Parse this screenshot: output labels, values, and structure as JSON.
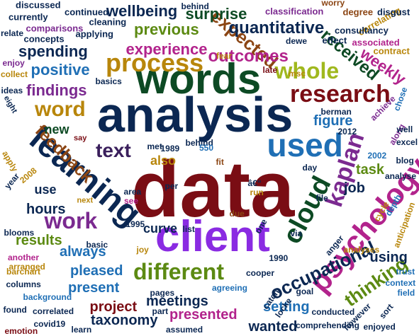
{
  "words": [
    {
      "text": "data",
      "color": "#7a0d14"
    },
    {
      "text": "analysis",
      "color": "#0b2752"
    },
    {
      "text": "words",
      "color": "#0d4a24"
    },
    {
      "text": "client",
      "color": "#8a2be2"
    },
    {
      "text": "learning",
      "color": "#0b2752"
    },
    {
      "text": "used",
      "color": "#1f6fb5"
    },
    {
      "text": "psychology",
      "color": "#b2238c"
    },
    {
      "text": "cloud",
      "color": "#0d4a24"
    },
    {
      "text": "kaplan",
      "color": "#7b2a90"
    },
    {
      "text": "research",
      "color": "#7a0d14"
    },
    {
      "text": "process",
      "color": "#b8860b"
    },
    {
      "text": "whole",
      "color": "#a0b81e"
    },
    {
      "text": "different",
      "color": "#5c8a12"
    },
    {
      "text": "work",
      "color": "#7b2a90"
    },
    {
      "text": "word",
      "color": "#b8860b"
    },
    {
      "text": "text",
      "color": "#3a1f5c"
    },
    {
      "text": "feedback",
      "color": "#8b4513"
    },
    {
      "text": "occupational",
      "color": "#0b2752"
    },
    {
      "text": "thinking",
      "color": "#5c8a12"
    },
    {
      "text": "expected",
      "color": "#8b4513"
    },
    {
      "text": "outcomes",
      "color": "#b2238c"
    },
    {
      "text": "quantitative",
      "color": "#0b2752"
    },
    {
      "text": "received",
      "color": "#0d4a24"
    },
    {
      "text": "findings",
      "color": "#7b2a90"
    },
    {
      "text": "spending",
      "color": "#0b2752"
    },
    {
      "text": "experience",
      "color": "#b2238c"
    },
    {
      "text": "previous",
      "color": "#5c8a12"
    },
    {
      "text": "wellbeing",
      "color": "#0b2752"
    },
    {
      "text": "surprise",
      "color": "#0d4a24"
    },
    {
      "text": "positive",
      "color": "#1f6fb5"
    },
    {
      "text": "weekly",
      "color": "#b2238c"
    },
    {
      "text": "figure",
      "color": "#1f6fb5"
    },
    {
      "text": "job",
      "color": "#0b2752"
    },
    {
      "text": "task",
      "color": "#5c8a12"
    },
    {
      "text": "hours",
      "color": "#0b2752"
    },
    {
      "text": "results",
      "color": "#5c8a12"
    },
    {
      "text": "always",
      "color": "#1f6fb5"
    },
    {
      "text": "pleased",
      "color": "#1f6fb5"
    },
    {
      "text": "present",
      "color": "#1f6fb5"
    },
    {
      "text": "curve",
      "color": "#0b2752"
    },
    {
      "text": "meetings",
      "color": "#0b2752"
    },
    {
      "text": "taxonomy",
      "color": "#0b2752"
    },
    {
      "text": "project",
      "color": "#7a0d14"
    },
    {
      "text": "presented",
      "color": "#b2238c"
    },
    {
      "text": "setting",
      "color": "#1f6fb5"
    },
    {
      "text": "wanted",
      "color": "#0b2752"
    },
    {
      "text": "using",
      "color": "#0b2752"
    },
    {
      "text": "also",
      "color": "#b8860b"
    },
    {
      "text": "new",
      "color": "#0d4a24"
    },
    {
      "text": "use",
      "color": "#0b2752"
    },
    {
      "text": "discussed",
      "color": "#0b2752"
    },
    {
      "text": "currently",
      "color": "#0b2752"
    },
    {
      "text": "relate",
      "color": "#0b2752"
    },
    {
      "text": "comparisons",
      "color": "#7b2a90"
    },
    {
      "text": "concepts",
      "color": "#0b2752"
    },
    {
      "text": "continued",
      "color": "#0b2752"
    },
    {
      "text": "cleaning",
      "color": "#0b2752"
    },
    {
      "text": "applying",
      "color": "#0b2752"
    },
    {
      "text": "behind",
      "color": "#0b2752"
    },
    {
      "text": "classification",
      "color": "#7b2a90"
    },
    {
      "text": "worry",
      "color": "#8b4513"
    },
    {
      "text": "degree",
      "color": "#8b4513"
    },
    {
      "text": "correlating",
      "color": "#b8860b"
    },
    {
      "text": "disgust",
      "color": "#0b2752"
    },
    {
      "text": "consultancy",
      "color": "#0b2752"
    },
    {
      "text": "associated",
      "color": "#b2238c"
    },
    {
      "text": "effect",
      "color": "#0b2752"
    },
    {
      "text": "contract",
      "color": "#b8860b"
    },
    {
      "text": "dewe",
      "color": "#0b2752"
    },
    {
      "text": "fear",
      "color": "#b8860b"
    },
    {
      "text": "late",
      "color": "#7a0d14"
    },
    {
      "text": "msc",
      "color": "#b8860b"
    },
    {
      "text": "enjoy",
      "color": "#7b2a90"
    },
    {
      "text": "collect",
      "color": "#b8860b"
    },
    {
      "text": "ideas",
      "color": "#0b2752"
    },
    {
      "text": "basics",
      "color": "#0b2752"
    },
    {
      "text": "eight",
      "color": "#0b2752"
    },
    {
      "text": "say",
      "color": "#7a0d14"
    },
    {
      "text": "met",
      "color": "#0b2752"
    },
    {
      "text": "behind",
      "color": "#0b2752"
    },
    {
      "text": "1989",
      "color": "#0b2752"
    },
    {
      "text": "550",
      "color": "#1f6fb5"
    },
    {
      "text": "fit",
      "color": "#8b4513"
    },
    {
      "text": "berman",
      "color": "#0b2752"
    },
    {
      "text": "2012",
      "color": "#0b2752"
    },
    {
      "text": "along",
      "color": "#7b2a90"
    },
    {
      "text": "achieve",
      "color": "#7b2a90"
    },
    {
      "text": "chose",
      "color": "#1f6fb5"
    },
    {
      "text": "well",
      "color": "#0b2752"
    },
    {
      "text": "excel",
      "color": "#0b2752"
    },
    {
      "text": "blog",
      "color": "#0b2752"
    },
    {
      "text": "2002",
      "color": "#1f6fb5"
    },
    {
      "text": "day",
      "color": "#0b2752"
    },
    {
      "text": "â€“",
      "color": "#0b2752"
    },
    {
      "text": "run",
      "color": "#b8860b"
    },
    {
      "text": "file",
      "color": "#0b2752"
    },
    {
      "text": "analyse",
      "color": "#0b2752"
    },
    {
      "text": "apply",
      "color": "#b8860b"
    },
    {
      "text": "year",
      "color": "#0b2752"
    },
    {
      "text": "2008",
      "color": "#b8860b"
    },
    {
      "text": "next",
      "color": "#b8860b"
    },
    {
      "text": "see",
      "color": "#b2238c"
    },
    {
      "text": "area",
      "color": "#0b2752"
    },
    {
      "text": "per",
      "color": "#0b2752"
    },
    {
      "text": "cycle",
      "color": "#b8860b"
    },
    {
      "text": "anticipation",
      "color": "#b8860b"
    },
    {
      "text": "depth",
      "color": "#1f6fb5"
    },
    {
      "text": "due",
      "color": "#8b4513"
    },
    {
      "text": "one",
      "color": "#0b2752"
    },
    {
      "text": "via",
      "color": "#0b2752"
    },
    {
      "text": "list",
      "color": "#0b2752"
    },
    {
      "text": "1995",
      "color": "#0b2752"
    },
    {
      "text": "blooms",
      "color": "#0b2752"
    },
    {
      "text": "another",
      "color": "#b2238c"
    },
    {
      "text": "arranged",
      "color": "#b8860b"
    },
    {
      "text": "barchart",
      "color": "#b8860b"
    },
    {
      "text": "columns",
      "color": "#0b2752"
    },
    {
      "text": "background",
      "color": "#1f6fb5"
    },
    {
      "text": "correlated",
      "color": "#0b2752"
    },
    {
      "text": "found",
      "color": "#0b2752"
    },
    {
      "text": "emotion",
      "color": "#7a0d14"
    },
    {
      "text": "covid19",
      "color": "#0b2752"
    },
    {
      "text": "learn",
      "color": "#0b2752"
    },
    {
      "text": "basic",
      "color": "#0b2752"
    },
    {
      "text": "joy",
      "color": "#b8860b"
    },
    {
      "text": "pages",
      "color": "#0b2752"
    },
    {
      "text": "part",
      "color": "#0b2752"
    },
    {
      "text": "assumed",
      "color": "#0b2752"
    },
    {
      "text": "agreeing",
      "color": "#1f6fb5"
    },
    {
      "text": "cooper",
      "color": "#0b2752"
    },
    {
      "text": "1990",
      "color": "#0b2752"
    },
    {
      "text": "anger",
      "color": "#0b2752"
    },
    {
      "text": "catch",
      "color": "#0b2752"
    },
    {
      "text": "locke",
      "color": "#0b2752"
    },
    {
      "text": "goal",
      "color": "#0b2752"
    },
    {
      "text": "analyses",
      "color": "#b8860b"
    },
    {
      "text": "conducted",
      "color": "#0b2752"
    },
    {
      "text": "comprehending",
      "color": "#0b2752"
    },
    {
      "text": "however",
      "color": "#0b2752"
    },
    {
      "text": "enjoyed",
      "color": "#0b2752"
    },
    {
      "text": "trust",
      "color": "#1f6fb5"
    },
    {
      "text": "context",
      "color": "#1f6fb5"
    },
    {
      "text": "field",
      "color": "#1f6fb5"
    },
    {
      "text": "sort",
      "color": "#0b2752"
    }
  ]
}
